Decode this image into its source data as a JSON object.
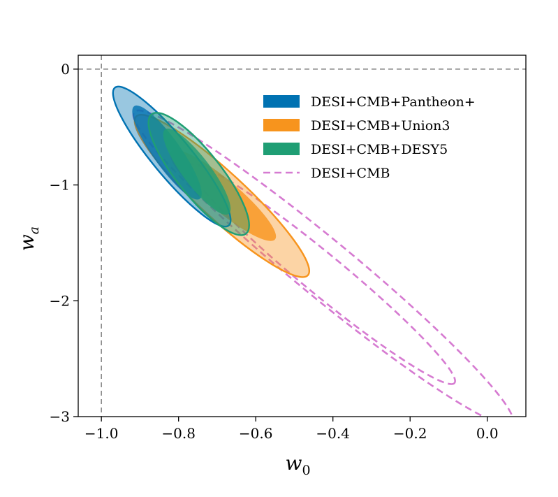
{
  "chart_data": {
    "type": "contour",
    "xlabel": "w",
    "xlabel_sub": "0",
    "ylabel": "w",
    "ylabel_sub": "a",
    "xlim": [
      -1.06,
      0.1
    ],
    "ylim": [
      -3.0,
      0.12
    ],
    "xticks": [
      -1.0,
      -0.8,
      -0.6,
      -0.4,
      -0.2,
      0.0
    ],
    "xtick_labels": [
      "−1.0",
      "−0.8",
      "−0.6",
      "−0.4",
      "−0.2",
      "0.0"
    ],
    "yticks": [
      0,
      -1,
      -2,
      -3
    ],
    "ytick_labels": [
      "0",
      "−1",
      "−2",
      "−3"
    ],
    "reference_lines": [
      {
        "orientation": "vertical",
        "value": -1.0,
        "style": "dashed",
        "color": "#808080"
      },
      {
        "orientation": "horizontal",
        "value": 0.0,
        "style": "dashed",
        "color": "#808080"
      }
    ],
    "legend_position": "top-right",
    "series": [
      {
        "name": "DESI+CMB+Pantheon+",
        "color": "#0072b2",
        "style": "filled",
        "center": [
          -0.83,
          -0.74
        ],
        "axis_endpoints_outer": [
          [
            -0.965,
            -0.16
          ],
          [
            -0.67,
            -1.35
          ]
        ],
        "minor_halfwidth_outer": 0.05,
        "axis_endpoints_inner": [
          [
            -0.915,
            -0.32
          ],
          [
            -0.745,
            -1.12
          ]
        ],
        "minor_halfwidth_inner": 0.036
      },
      {
        "name": "DESI+CMB+Union3",
        "color": "#f7941d",
        "style": "filled",
        "center": [
          -0.69,
          -1.09
        ],
        "axis_endpoints_outer": [
          [
            -0.91,
            -0.41
          ],
          [
            -0.465,
            -1.78
          ]
        ],
        "minor_halfwidth_outer": 0.06,
        "axis_endpoints_inner": [
          [
            -0.82,
            -0.71
          ],
          [
            -0.55,
            -1.47
          ]
        ],
        "minor_halfwidth_inner": 0.04
      },
      {
        "name": "DESI+CMB+DESY5",
        "color": "#1f9e74",
        "style": "filled",
        "center": [
          -0.75,
          -0.86
        ],
        "axis_endpoints_outer": [
          [
            -0.87,
            -0.39
          ],
          [
            -0.625,
            -1.42
          ]
        ],
        "minor_halfwidth_outer": 0.057,
        "axis_endpoints_inner": [
          [
            -0.835,
            -0.52
          ],
          [
            -0.67,
            -1.25
          ]
        ],
        "minor_halfwidth_inner": 0.036
      },
      {
        "name": "DESI+CMB",
        "color": "#d67bd1",
        "style": "dashed",
        "center": [
          -0.48,
          -1.68
        ],
        "axis_endpoints_outer": [
          [
            -0.915,
            -0.37
          ],
          [
            0.065,
            -3.06
          ]
        ],
        "minor_halfwidth_outer": 0.074,
        "axis_endpoints_inner": [
          [
            -0.77,
            -0.83
          ],
          [
            -0.085,
            -2.71
          ]
        ],
        "minor_halfwidth_inner": 0.052
      }
    ]
  }
}
